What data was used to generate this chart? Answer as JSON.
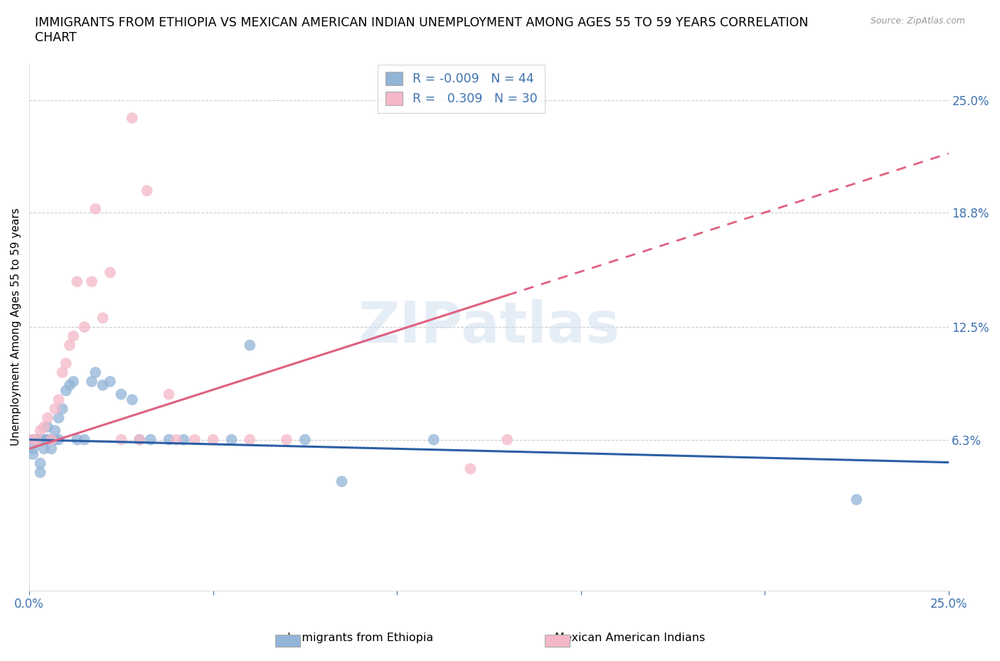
{
  "title": "IMMIGRANTS FROM ETHIOPIA VS MEXICAN AMERICAN INDIAN UNEMPLOYMENT AMONG AGES 55 TO 59 YEARS CORRELATION\nCHART",
  "source_text": "Source: ZipAtlas.com",
  "ylabel": "Unemployment Among Ages 55 to 59 years",
  "xlim": [
    0.0,
    0.25
  ],
  "ylim": [
    -0.02,
    0.27
  ],
  "ytick_positions": [
    0.063,
    0.125,
    0.188,
    0.25
  ],
  "ytick_labels": [
    "6.3%",
    "12.5%",
    "18.8%",
    "25.0%"
  ],
  "watermark": "ZIPatlas",
  "blue_color": "#92b4d7",
  "pink_color": "#f4b8c8",
  "blue_line_color": "#2b5fa5",
  "pink_line_color": "#e06080",
  "axis_color": "#3f72af",
  "legend_R1": "-0.009",
  "legend_N1": "44",
  "legend_R2": "0.309",
  "legend_N2": "30",
  "label1": "Immigrants from Ethiopia",
  "label2": "Mexican American Indians",
  "blue_scatter_x": [
    0.001,
    0.001,
    0.001,
    0.002,
    0.002,
    0.002,
    0.003,
    0.003,
    0.003,
    0.003,
    0.004,
    0.004,
    0.004,
    0.005,
    0.005,
    0.005,
    0.006,
    0.006,
    0.007,
    0.007,
    0.008,
    0.008,
    0.009,
    0.01,
    0.011,
    0.012,
    0.013,
    0.015,
    0.017,
    0.018,
    0.02,
    0.022,
    0.025,
    0.028,
    0.03,
    0.033,
    0.038,
    0.042,
    0.055,
    0.06,
    0.075,
    0.085,
    0.11,
    0.225
  ],
  "blue_scatter_y": [
    0.063,
    0.055,
    0.058,
    0.063,
    0.063,
    0.063,
    0.063,
    0.063,
    0.05,
    0.045,
    0.063,
    0.063,
    0.058,
    0.063,
    0.063,
    0.07,
    0.063,
    0.058,
    0.063,
    0.068,
    0.063,
    0.075,
    0.08,
    0.09,
    0.093,
    0.095,
    0.063,
    0.063,
    0.095,
    0.1,
    0.093,
    0.095,
    0.088,
    0.085,
    0.063,
    0.063,
    0.063,
    0.063,
    0.063,
    0.115,
    0.063,
    0.04,
    0.063,
    0.03
  ],
  "pink_scatter_x": [
    0.001,
    0.002,
    0.003,
    0.004,
    0.005,
    0.006,
    0.007,
    0.008,
    0.009,
    0.01,
    0.011,
    0.012,
    0.013,
    0.015,
    0.017,
    0.018,
    0.02,
    0.022,
    0.025,
    0.028,
    0.03,
    0.032,
    0.038,
    0.04,
    0.045,
    0.05,
    0.06,
    0.07,
    0.12,
    0.13
  ],
  "pink_scatter_y": [
    0.063,
    0.063,
    0.068,
    0.07,
    0.075,
    0.063,
    0.08,
    0.085,
    0.1,
    0.105,
    0.115,
    0.12,
    0.15,
    0.125,
    0.15,
    0.19,
    0.13,
    0.155,
    0.063,
    0.24,
    0.063,
    0.2,
    0.088,
    0.063,
    0.063,
    0.063,
    0.063,
    0.063,
    0.047,
    0.063
  ]
}
